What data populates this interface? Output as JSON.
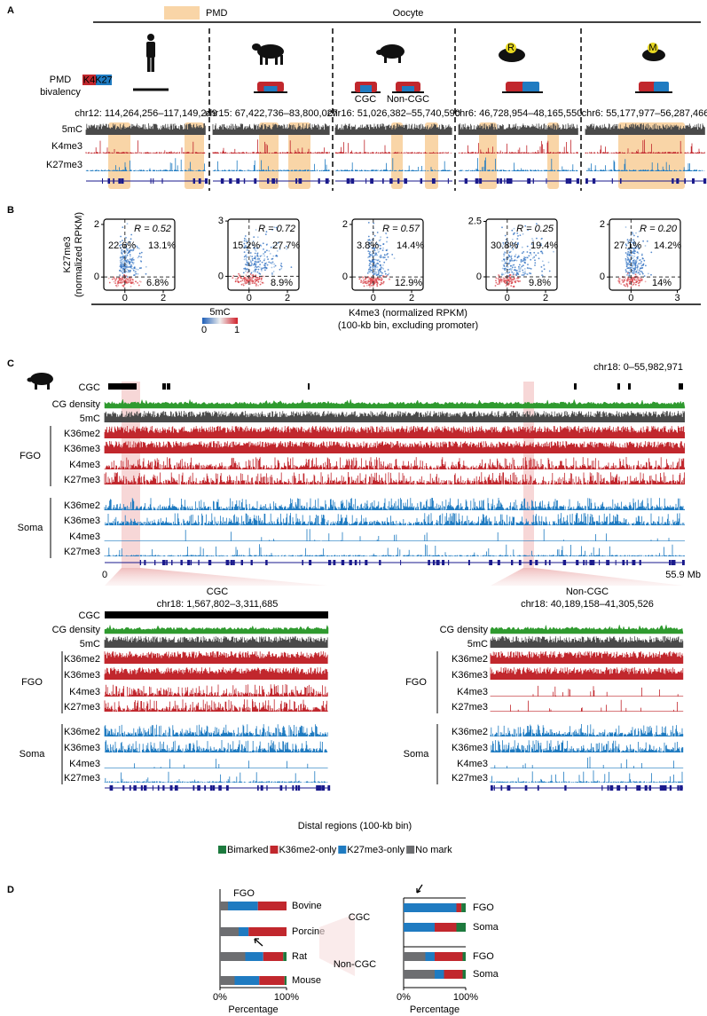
{
  "panel_a": {
    "label": "A",
    "legend": "PMD",
    "title": "Oocyte",
    "bivalency": [
      "PMD",
      "bivalency"
    ],
    "k4": "K4",
    "k27": "K27",
    "cgc": "CGC",
    "non_cgc": "Non-CGC",
    "rat": "R",
    "mouse": "M",
    "tracks": [
      "5mC",
      "K4me3",
      "K27me3"
    ],
    "regions": [
      "chr12: 114,264,256–117,149,249",
      "chr15: 67,422,736–83,800,027",
      "chr16: 51,026,382–55,740,590",
      "chr6: 46,728,954–48,165,550",
      "chr6: 55,177,977–56,287,466"
    ]
  },
  "panel_b": {
    "label": "B",
    "ylabel": [
      "K27me3",
      "(normalized RPKM)"
    ],
    "xlabel": [
      "K4me3 (normalized RPKM)",
      "(100-kb bin, excluding promoter)"
    ],
    "colorbar": {
      "title": "5mC",
      "min": "0",
      "max": "1"
    },
    "plots": [
      {
        "r": "R = 0.52",
        "quadrants": [
          "22.6%",
          "13.1%",
          "6.8%"
        ],
        "xlim": [
          -1.1,
          2.6
        ],
        "ylim": [
          -0.5,
          2.2
        ],
        "xticks": [
          0,
          2
        ],
        "yticks": [
          0,
          2
        ]
      },
      {
        "r": "R = 0.72",
        "quadrants": [
          "15.2%",
          "27.7%",
          "8.9%"
        ],
        "xlim": [
          -1.1,
          2.6
        ],
        "ylim": [
          -0.75,
          3.1
        ],
        "xticks": [
          0,
          2
        ],
        "yticks": [
          0,
          3
        ]
      },
      {
        "r": "R = 0.57",
        "quadrants": [
          "3.8%",
          "14.4%",
          "12.9%"
        ],
        "xlim": [
          -1.1,
          2.6
        ],
        "ylim": [
          -0.5,
          2.2
        ],
        "xticks": [
          0,
          2
        ],
        "yticks": [
          0,
          2
        ]
      },
      {
        "r": "R = 0.25",
        "quadrants": [
          "30.8%",
          "19.4%",
          "9.8%"
        ],
        "xlim": [
          -1.1,
          2.6
        ],
        "ylim": [
          -0.6,
          2.6
        ],
        "xticks": [
          0,
          2
        ],
        "yticks": [
          0,
          2.5
        ]
      },
      {
        "r": "R = 0.20",
        "quadrants": [
          "27.1%",
          "14.2%",
          "14%"
        ],
        "xlim": [
          -1.4,
          3.2
        ],
        "ylim": [
          -0.5,
          2.2
        ],
        "xticks": [
          0,
          3
        ],
        "yticks": [
          0,
          2
        ]
      }
    ]
  },
  "panel_c": {
    "label": "C",
    "region": "chr18: 0–55,982,971",
    "top_tracks": [
      "CGC",
      "CG density",
      "5mC"
    ],
    "fgo": "FGO",
    "soma": "Soma",
    "fgo_tracks": [
      "K36me2",
      "K36me3",
      "K4me3",
      "K27me3"
    ],
    "soma_tracks": [
      "K36me2",
      "K36me3",
      "K4me3",
      "K27me3"
    ],
    "axis": [
      "0",
      "55.9 Mb"
    ],
    "zoom_cgc": {
      "title": "CGC",
      "region": "chr18: 1,567,802–3,311,685",
      "top_tracks": [
        "CGC",
        "CG density",
        "5mC"
      ],
      "fgo": "FGO",
      "soma": "Soma",
      "fgo_tracks": [
        "K36me2",
        "K36me3",
        "K4me3",
        "K27me3"
      ],
      "soma_tracks": [
        "K36me2",
        "K36me3",
        "K4me3",
        "K27me3"
      ]
    },
    "zoom_noncgc": {
      "title": "Non-CGC",
      "region": "chr18: 40,189,158–41,305,526",
      "top_tracks": [
        "CG density",
        "5mC"
      ],
      "fgo": "FGO",
      "soma": "Soma",
      "fgo_tracks": [
        "K36me2",
        "K36me3",
        "K4me3",
        "K27me3"
      ],
      "soma_tracks": [
        "K36me2",
        "K36me3",
        "K4me3",
        "K27me3"
      ]
    }
  },
  "panel_d": {
    "label": "D",
    "title": "Distal regions (100-kb bin)"
  },
  "chart_data": [
    {
      "type": "stacked_bar_h",
      "header": "FGO",
      "categories": [
        "Bovine",
        "Porcine",
        "Rat",
        "Mouse"
      ],
      "series": [
        {
          "name": "Bimarked",
          "color": "#1d7a3e",
          "values": [
            0,
            0,
            5,
            3
          ]
        },
        {
          "name": "K36me2-only",
          "color": "#c1272d",
          "values": [
            43,
            57,
            30,
            38
          ]
        },
        {
          "name": "K27me3-only",
          "color": "#1f7bc1",
          "values": [
            45,
            15,
            27,
            37
          ]
        },
        {
          "name": "No mark",
          "color": "#6d6e71",
          "values": [
            12,
            28,
            38,
            22
          ]
        }
      ],
      "xlim": [
        0,
        100
      ],
      "xticks": [
        {
          "value": 0,
          "label": "0%"
        },
        {
          "value": 100,
          "label": "100%"
        }
      ],
      "xlabel": "Percentage"
    },
    {
      "type": "stacked_bar_h",
      "groups": [
        "CGC",
        "Non-CGC"
      ],
      "categories": [
        "FGO",
        "Soma",
        "FGO",
        "Soma"
      ],
      "series": [
        {
          "color": "#1d7a3e",
          "values": [
            7,
            15,
            5,
            5
          ]
        },
        {
          "color": "#c1272d",
          "values": [
            8,
            35,
            45,
            30
          ]
        },
        {
          "color": "#1f7bc1",
          "values": [
            85,
            50,
            15,
            15
          ]
        },
        {
          "color": "#6d6e71",
          "values": [
            0,
            0,
            35,
            50
          ]
        }
      ],
      "xlim": [
        0,
        100
      ],
      "xticks": [
        {
          "value": 0,
          "label": "0%"
        },
        {
          "value": 100,
          "label": "100%"
        }
      ],
      "xlabel": "Percentage"
    }
  ]
}
